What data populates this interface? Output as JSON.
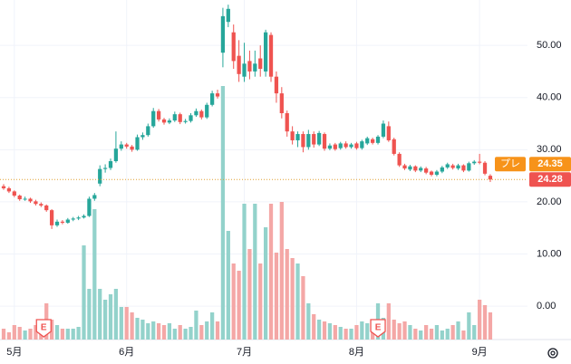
{
  "chart_data": {
    "type": "candlestick",
    "candles": {
      "open": [
        23.0,
        22.6,
        22.0,
        21.2,
        20.5,
        20.6,
        20.1,
        19.6,
        19.3,
        18.4,
        15.5,
        16.2,
        16.0,
        16.6,
        16.8,
        17.0,
        17.3,
        20.6,
        23.5,
        26.3,
        26.5,
        27.8,
        30.2,
        31.0,
        30.6,
        30.0,
        32.4,
        32.8,
        34.5,
        37.4,
        35.8,
        35.2,
        35.6,
        36.8,
        35.3,
        35.5,
        36.6,
        37.4,
        36.2,
        38.6,
        40.8,
        48.6,
        54.5,
        52.5,
        48.0,
        44.0,
        47.0,
        45.0,
        47.5,
        45.0,
        52.0,
        44.0,
        40.8,
        37.0,
        33.5,
        31.8,
        33.0,
        30.5,
        33.0,
        31.0,
        33.0,
        30.2,
        31.0,
        30.3,
        31.2,
        30.5,
        31.2,
        30.3,
        31.2,
        32.0,
        31.3,
        32.5,
        34.5,
        32.0,
        29.2,
        27.0,
        26.2,
        26.8,
        26.0,
        26.4,
        25.8,
        25.2,
        25.8,
        26.6,
        27.0,
        26.4,
        27.0,
        26.0,
        27.4,
        27.7,
        27.5,
        25.0
      ],
      "high": [
        23.4,
        22.9,
        22.2,
        21.4,
        21.0,
        20.8,
        20.4,
        19.9,
        19.5,
        18.6,
        16.6,
        16.5,
        16.9,
        17.1,
        17.3,
        17.6,
        21.0,
        21.7,
        27.0,
        27.2,
        28.3,
        33.5,
        31.6,
        31.3,
        30.9,
        32.9,
        33.3,
        35.0,
        38.0,
        37.8,
        36.1,
        36.0,
        37.3,
        37.1,
        35.9,
        37.0,
        37.9,
        37.7,
        39.0,
        41.3,
        41.5,
        57.2,
        57.8,
        54.0,
        51.0,
        50.5,
        49.0,
        49.0,
        50.0,
        53.0,
        52.5,
        45.0,
        42.0,
        37.5,
        34.5,
        33.5,
        33.5,
        33.8,
        33.5,
        33.6,
        33.3,
        31.2,
        31.3,
        31.5,
        31.6,
        31.3,
        31.5,
        31.9,
        32.5,
        32.3,
        32.8,
        35.6,
        35.4,
        32.3,
        29.5,
        27.3,
        27.1,
        27.0,
        26.8,
        26.7,
        26.0,
        26.1,
        26.9,
        27.5,
        27.3,
        27.3,
        27.2,
        27.7,
        28.0,
        29.2,
        27.8,
        25.3
      ],
      "low": [
        22.3,
        21.7,
        20.9,
        20.2,
        20.2,
        19.8,
        19.3,
        19.0,
        18.1,
        14.8,
        15.2,
        15.7,
        15.8,
        16.3,
        16.5,
        16.8,
        17.1,
        20.2,
        23.0,
        25.6,
        26.1,
        27.5,
        29.8,
        30.2,
        29.6,
        29.8,
        31.9,
        32.5,
        34.2,
        35.4,
        34.8,
        34.9,
        35.3,
        34.9,
        35.0,
        35.2,
        36.3,
        35.8,
        35.9,
        38.3,
        39.8,
        45.8,
        53.5,
        45.5,
        43.0,
        43.0,
        43.5,
        44.0,
        44.0,
        44.0,
        43.0,
        39.0,
        36.0,
        32.5,
        31.0,
        30.5,
        29.5,
        30.0,
        30.4,
        30.7,
        29.8,
        29.9,
        29.8,
        30.0,
        30.2,
        30.2,
        30.0,
        30.0,
        30.9,
        31.0,
        31.0,
        32.2,
        31.5,
        28.9,
        26.7,
        26.1,
        25.9,
        25.7,
        25.7,
        25.3,
        24.9,
        24.9,
        25.5,
        26.3,
        26.2,
        26.1,
        25.7,
        25.8,
        27.1,
        27.2,
        25.1,
        23.8
      ],
      "close": [
        22.6,
        22.0,
        21.2,
        20.5,
        20.6,
        20.1,
        19.6,
        19.3,
        18.4,
        15.5,
        16.2,
        16.0,
        16.6,
        16.8,
        17.0,
        17.3,
        20.6,
        21.3,
        26.3,
        26.5,
        27.8,
        30.2,
        31.0,
        30.6,
        30.0,
        32.4,
        32.8,
        34.5,
        37.4,
        35.8,
        35.2,
        35.6,
        36.8,
        35.3,
        35.5,
        36.6,
        37.4,
        36.2,
        38.6,
        40.8,
        40.2,
        55.6,
        57.0,
        47.0,
        44.5,
        46.5,
        45.0,
        46.5,
        45.5,
        52.5,
        44.0,
        40.8,
        37.0,
        33.5,
        31.8,
        33.0,
        30.5,
        33.0,
        31.0,
        33.2,
        30.2,
        30.8,
        30.1,
        31.2,
        30.5,
        31.0,
        30.3,
        31.6,
        32.2,
        31.3,
        32.5,
        35.0,
        31.8,
        29.2,
        27.0,
        26.4,
        26.8,
        26.0,
        26.5,
        25.6,
        25.2,
        25.8,
        26.6,
        27.2,
        26.5,
        27.0,
        26.0,
        27.4,
        27.7,
        27.5,
        25.4,
        24.28
      ]
    },
    "volume": [
      6,
      4,
      8,
      7,
      5,
      6,
      8,
      9,
      20,
      11,
      8,
      6,
      6,
      6,
      7,
      52,
      28,
      72,
      28,
      22,
      25,
      28,
      18,
      18,
      15,
      12,
      11,
      9,
      10,
      9,
      8,
      9,
      6,
      8,
      6,
      7,
      16,
      8,
      10,
      15,
      10,
      140,
      60,
      42,
      38,
      75,
      50,
      75,
      42,
      62,
      75,
      48,
      76,
      50,
      45,
      42,
      35,
      20,
      14,
      11,
      10,
      9,
      8,
      7,
      6,
      6,
      8,
      10,
      9,
      11,
      20,
      12,
      20,
      11,
      9,
      10,
      8,
      6,
      5,
      8,
      6,
      8,
      5,
      6,
      8,
      10,
      5,
      15,
      8,
      22,
      19,
      15
    ],
    "vlim": [
      0,
      140
    ],
    "xlim": [
      -0.68,
      97.96
    ],
    "xticks": [
      {
        "value": 2,
        "label": "5月"
      },
      {
        "value": 23,
        "label": "6月"
      },
      {
        "value": 45,
        "label": "7月"
      },
      {
        "value": 66,
        "label": "8月"
      },
      {
        "value": 89,
        "label": "9月"
      }
    ],
    "ylim": [
      -6.4,
      58.7
    ],
    "yticks": [
      {
        "value": 0,
        "label": "0.00"
      },
      {
        "value": 10,
        "label": "10.00"
      },
      {
        "value": 20,
        "label": "20.00"
      },
      {
        "value": 30,
        "label": "30.00"
      },
      {
        "value": 40,
        "label": "40.00"
      },
      {
        "value": 50,
        "label": "50.00"
      }
    ],
    "grid": true,
    "up_color": "#26a69a",
    "down_color": "#ef5350",
    "up_volume_color": "#93d2cb",
    "down_volume_color": "#f4a7a6",
    "last_price": 24.28,
    "premarket": {
      "label": "プレ",
      "value": 24.35,
      "color": "#f7931a"
    },
    "events": [
      {
        "index": 7.5,
        "label": "E"
      },
      {
        "index": 70,
        "label": "E"
      }
    ]
  }
}
